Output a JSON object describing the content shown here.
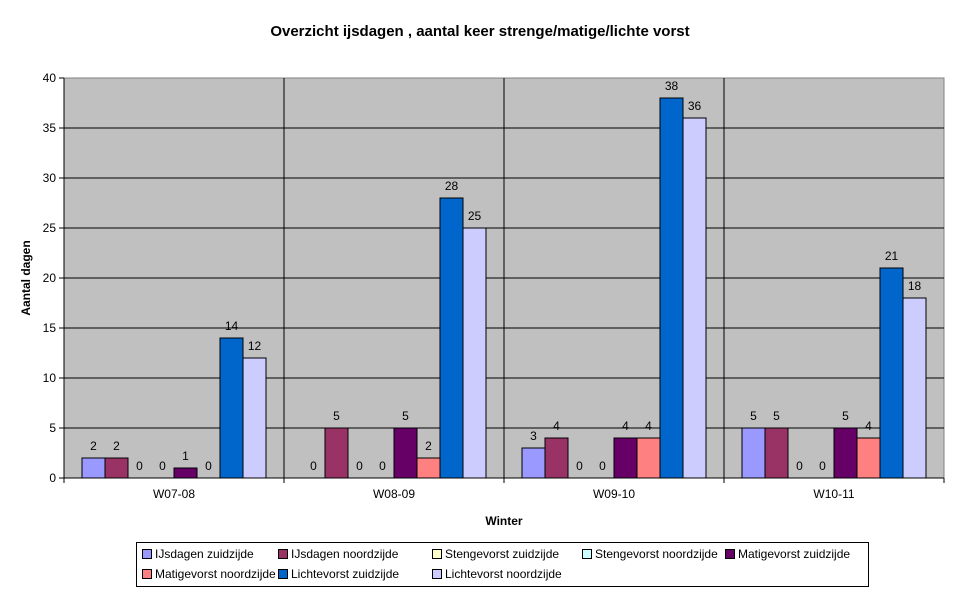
{
  "chart_data": {
    "type": "bar",
    "title": "Overzicht ijsdagen , aantal keer strenge/matige/lichte vorst",
    "xlabel": "Winter",
    "ylabel": "Aantal dagen",
    "ylim": [
      0,
      40
    ],
    "yticks": [
      0,
      5,
      10,
      15,
      20,
      25,
      30,
      35,
      40
    ],
    "grid": true,
    "legend_position": "bottom",
    "categories": [
      "W07-08",
      "W08-09",
      "W09-10",
      "W10-11"
    ],
    "series": [
      {
        "name": "IJsdagen zuidzijde",
        "color": "#9999FF",
        "values": [
          2,
          0,
          3,
          5
        ]
      },
      {
        "name": "IJsdagen noordzijde",
        "color": "#993366",
        "values": [
          2,
          5,
          4,
          5
        ]
      },
      {
        "name": "Stengevorst zuidzijde",
        "color": "#FFFFCC",
        "values": [
          0,
          0,
          0,
          0
        ]
      },
      {
        "name": "Stengevorst noordzijde",
        "color": "#CCFFFF",
        "values": [
          0,
          0,
          0,
          0
        ]
      },
      {
        "name": "Matigevorst zuidzijde",
        "color": "#660066",
        "values": [
          1,
          5,
          4,
          5
        ]
      },
      {
        "name": "Matigevorst noordzijde",
        "color": "#FF8080",
        "values": [
          0,
          2,
          4,
          4
        ]
      },
      {
        "name": "Lichtevorst zuidzijde",
        "color": "#0066CC",
        "values": [
          14,
          28,
          38,
          21
        ]
      },
      {
        "name": "Lichtevorst noordzijde",
        "color": "#CCCCFF",
        "values": [
          12,
          25,
          36,
          18
        ]
      }
    ],
    "plot_background": "#C0C0C0"
  }
}
